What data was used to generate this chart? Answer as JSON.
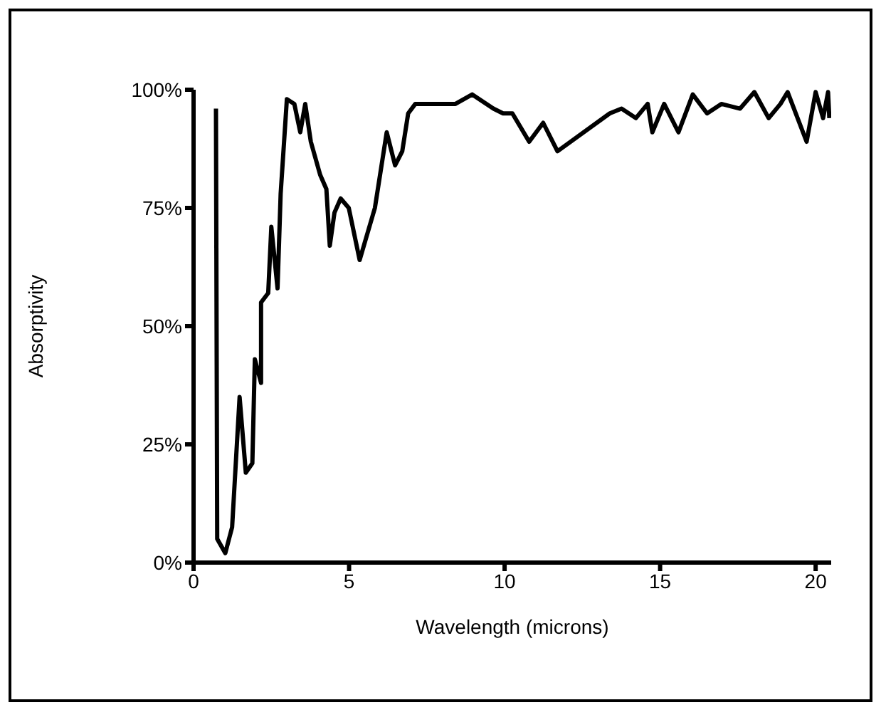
{
  "chart_data": {
    "type": "line",
    "xlabel": "Wavelength (microns)",
    "ylabel": "Absorptivity",
    "x": [
      0.72,
      0.76,
      1.02,
      1.24,
      1.48,
      1.68,
      1.89,
      1.97,
      2.17,
      2.17,
      2.4,
      2.5,
      2.7,
      2.8,
      3.0,
      3.24,
      3.43,
      3.59,
      3.77,
      4.07,
      4.27,
      4.38,
      4.53,
      4.73,
      4.99,
      5.34,
      5.83,
      6.21,
      6.48,
      6.71,
      6.9,
      7.13,
      7.96,
      8.42,
      8.96,
      9.64,
      9.95,
      10.25,
      10.79,
      11.24,
      11.7,
      13.38,
      13.76,
      14.22,
      14.6,
      14.75,
      15.13,
      15.59,
      16.05,
      16.51,
      16.97,
      17.57,
      18.03,
      18.49,
      18.87,
      19.1,
      19.71,
      20.0,
      20.24,
      20.4,
      20.44
    ],
    "values": [
      96,
      5,
      2,
      7.5,
      35,
      19,
      21,
      43,
      38,
      55,
      57,
      71,
      58,
      78,
      98,
      97,
      91,
      97,
      89,
      82,
      79,
      67,
      74,
      77,
      75,
      64,
      75,
      91,
      84,
      87,
      95,
      97,
      97,
      97,
      99,
      96,
      95,
      95,
      89,
      93,
      87,
      95,
      96,
      94,
      97,
      91,
      97,
      91,
      99,
      95,
      97,
      96,
      99.5,
      94,
      97,
      99.5,
      89,
      99.5,
      94,
      99.5,
      94
    ],
    "color": "#000000",
    "marker": "none",
    "line_style": "solid",
    "grid": false,
    "legend": false,
    "xlim": [
      0,
      20.5
    ],
    "xticks": [
      0,
      5,
      10,
      15,
      20
    ],
    "ylim": [
      0,
      100
    ],
    "yticks": [
      {
        "value": 0,
        "label": "0%"
      },
      {
        "value": 25,
        "label": "25%"
      },
      {
        "value": 50,
        "label": "50%"
      },
      {
        "value": 75,
        "label": "75%"
      },
      {
        "value": 100,
        "label": "100%"
      }
    ]
  }
}
